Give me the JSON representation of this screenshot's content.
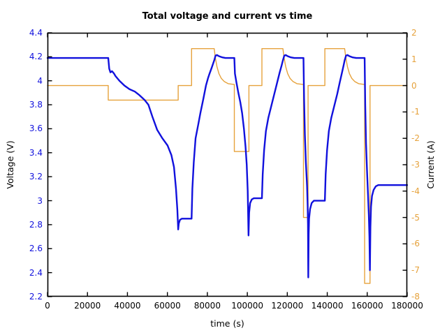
{
  "title": "Total voltage and current vs time",
  "chart_data": {
    "type": "line",
    "title": "Total voltage and current vs time",
    "xlabel": "time (s)",
    "ylabel_left": "Voltage (V)",
    "ylabel_right": "Current (A)",
    "x_range": [
      0,
      180000
    ],
    "x_ticks": [
      0,
      20000,
      40000,
      60000,
      80000,
      100000,
      120000,
      140000,
      160000,
      180000
    ],
    "y_left_range": [
      2.2,
      4.4
    ],
    "y_left_ticks": [
      "2.2",
      "2.4",
      "2.6",
      "2.8",
      "3",
      "3.2",
      "3.4",
      "3.6",
      "3.8",
      "4",
      "4.2",
      "4.4"
    ],
    "y_right_range": [
      -8,
      2
    ],
    "y_right_ticks": [
      "-8",
      "-7",
      "-6",
      "-5",
      "-4",
      "-3",
      "-2",
      "-1",
      "0",
      "1",
      "2"
    ],
    "grid": false,
    "legend": "none",
    "frame_color": "#000000",
    "series": [
      {
        "name": "current",
        "axis": "right",
        "color": "#e6a23c",
        "points": [
          [
            0,
            0
          ],
          [
            30400,
            0
          ],
          [
            30400,
            -0.55
          ],
          [
            65400,
            -0.55
          ],
          [
            65400,
            0
          ],
          [
            72100,
            0
          ],
          [
            72100,
            1.4
          ],
          [
            83430,
            1.4
          ],
          [
            84000,
            1.05
          ],
          [
            84800,
            0.72
          ],
          [
            85800,
            0.45
          ],
          [
            87000,
            0.27
          ],
          [
            88500,
            0.15
          ],
          [
            90500,
            0.07
          ],
          [
            93500,
            0.04
          ],
          [
            93500,
            -2.5
          ],
          [
            100800,
            -2.5
          ],
          [
            100800,
            0
          ],
          [
            107300,
            0
          ],
          [
            107300,
            1.4
          ],
          [
            117800,
            1.4
          ],
          [
            118400,
            1.05
          ],
          [
            119200,
            0.72
          ],
          [
            120200,
            0.45
          ],
          [
            121400,
            0.27
          ],
          [
            122900,
            0.15
          ],
          [
            124900,
            0.07
          ],
          [
            128100,
            0.04
          ],
          [
            128100,
            -5
          ],
          [
            130400,
            -5
          ],
          [
            130400,
            0
          ],
          [
            138800,
            0
          ],
          [
            138800,
            1.4
          ],
          [
            148700,
            1.4
          ],
          [
            149300,
            1.05
          ],
          [
            150100,
            0.72
          ],
          [
            151100,
            0.45
          ],
          [
            152300,
            0.27
          ],
          [
            153800,
            0.15
          ],
          [
            155800,
            0.07
          ],
          [
            158700,
            0.04
          ],
          [
            158700,
            -7.5
          ],
          [
            161400,
            -7.5
          ],
          [
            161400,
            0
          ],
          [
            180000,
            0
          ]
        ]
      },
      {
        "name": "voltage",
        "axis": "left",
        "color": "#1111dd",
        "points": [
          [
            0,
            4.19
          ],
          [
            30400,
            4.19
          ],
          [
            30900,
            4.1
          ],
          [
            31500,
            4.07
          ],
          [
            32300,
            4.08
          ],
          [
            33300,
            4.06
          ],
          [
            34000,
            4.04
          ],
          [
            36000,
            4.0
          ],
          [
            38500,
            3.96
          ],
          [
            41000,
            3.93
          ],
          [
            43700,
            3.91
          ],
          [
            46000,
            3.88
          ],
          [
            48600,
            3.84
          ],
          [
            50500,
            3.8
          ],
          [
            52500,
            3.7
          ],
          [
            54900,
            3.59
          ],
          [
            57500,
            3.52
          ],
          [
            60100,
            3.46
          ],
          [
            62000,
            3.38
          ],
          [
            63300,
            3.28
          ],
          [
            64300,
            3.1
          ],
          [
            65000,
            2.92
          ],
          [
            65400,
            2.76
          ],
          [
            65700,
            2.81
          ],
          [
            66300,
            2.84
          ],
          [
            67200,
            2.85
          ],
          [
            72100,
            2.85
          ],
          [
            72500,
            3.1
          ],
          [
            73200,
            3.32
          ],
          [
            74100,
            3.52
          ],
          [
            75500,
            3.64
          ],
          [
            76500,
            3.73
          ],
          [
            78000,
            3.85
          ],
          [
            79300,
            3.96
          ],
          [
            80300,
            4.02
          ],
          [
            81100,
            4.06
          ],
          [
            82200,
            4.11
          ],
          [
            83430,
            4.17
          ],
          [
            84100,
            4.21
          ],
          [
            84800,
            4.215
          ],
          [
            85800,
            4.205
          ],
          [
            87500,
            4.195
          ],
          [
            89000,
            4.19
          ],
          [
            93500,
            4.19
          ],
          [
            93800,
            4.06
          ],
          [
            94500,
            3.99
          ],
          [
            95500,
            3.9
          ],
          [
            96500,
            3.82
          ],
          [
            97400,
            3.73
          ],
          [
            98300,
            3.6
          ],
          [
            99100,
            3.45
          ],
          [
            99700,
            3.3
          ],
          [
            100200,
            3.08
          ],
          [
            100600,
            2.71
          ],
          [
            100900,
            2.9
          ],
          [
            101400,
            2.98
          ],
          [
            102200,
            3.01
          ],
          [
            103200,
            3.02
          ],
          [
            107300,
            3.02
          ],
          [
            107700,
            3.22
          ],
          [
            108400,
            3.42
          ],
          [
            109300,
            3.58
          ],
          [
            110500,
            3.69
          ],
          [
            112000,
            3.79
          ],
          [
            113500,
            3.89
          ],
          [
            115000,
            3.99
          ],
          [
            116200,
            4.07
          ],
          [
            117200,
            4.13
          ],
          [
            117800,
            4.17
          ],
          [
            118500,
            4.21
          ],
          [
            119200,
            4.215
          ],
          [
            120200,
            4.205
          ],
          [
            121800,
            4.195
          ],
          [
            123500,
            4.19
          ],
          [
            128100,
            4.19
          ],
          [
            128400,
            3.85
          ],
          [
            128800,
            3.55
          ],
          [
            129300,
            3.32
          ],
          [
            129900,
            3.12
          ],
          [
            130200,
            2.95
          ],
          [
            130350,
            2.8
          ],
          [
            130500,
            2.36
          ],
          [
            130700,
            2.72
          ],
          [
            130900,
            2.85
          ],
          [
            131400,
            2.93
          ],
          [
            132200,
            2.98
          ],
          [
            133300,
            3.0
          ],
          [
            138800,
            3.0
          ],
          [
            139200,
            3.22
          ],
          [
            139900,
            3.42
          ],
          [
            140800,
            3.58
          ],
          [
            142000,
            3.69
          ],
          [
            143500,
            3.79
          ],
          [
            145000,
            3.89
          ],
          [
            146300,
            3.99
          ],
          [
            147400,
            4.07
          ],
          [
            148200,
            4.13
          ],
          [
            148700,
            4.17
          ],
          [
            149400,
            4.21
          ],
          [
            150100,
            4.215
          ],
          [
            151100,
            4.205
          ],
          [
            152700,
            4.195
          ],
          [
            154500,
            4.19
          ],
          [
            158700,
            4.19
          ],
          [
            159000,
            3.8
          ],
          [
            159400,
            3.48
          ],
          [
            159900,
            3.25
          ],
          [
            160400,
            3.05
          ],
          [
            160800,
            2.88
          ],
          [
            161100,
            2.7
          ],
          [
            161350,
            2.42
          ],
          [
            161600,
            2.78
          ],
          [
            161900,
            2.95
          ],
          [
            162400,
            3.04
          ],
          [
            163200,
            3.09
          ],
          [
            164300,
            3.12
          ],
          [
            165500,
            3.13
          ],
          [
            180000,
            3.13
          ]
        ]
      }
    ]
  }
}
